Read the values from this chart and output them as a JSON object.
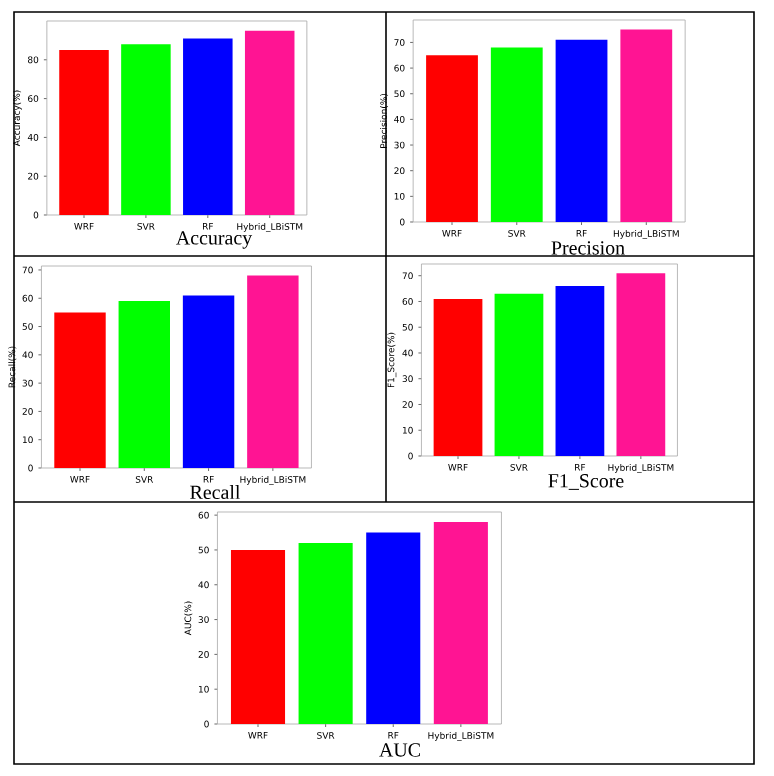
{
  "chart_data": [
    {
      "type": "bar",
      "title": "Accuracy",
      "ylabel": "Accuracy(%)",
      "categories": [
        "WRF",
        "SVR",
        "RF",
        "Hybrid_LBiSTM"
      ],
      "values": [
        85,
        88,
        91,
        95
      ],
      "colors": [
        "#ff0000",
        "#00ff00",
        "#0000ff",
        "#ff1493"
      ],
      "ylim": [
        0,
        100
      ],
      "yticks": [
        0,
        20,
        40,
        60,
        80
      ]
    },
    {
      "type": "bar",
      "title": "Precision",
      "ylabel": "Precision(%)",
      "categories": [
        "WRF",
        "SVR",
        "RF",
        "Hybrid_LBiSTM"
      ],
      "values": [
        65,
        68,
        71,
        75
      ],
      "colors": [
        "#ff0000",
        "#00ff00",
        "#0000ff",
        "#ff1493"
      ],
      "ylim": [
        0,
        78.75
      ],
      "yticks": [
        0,
        10,
        20,
        30,
        40,
        50,
        60,
        70
      ]
    },
    {
      "type": "bar",
      "title": "Recall",
      "ylabel": "Recall(%)",
      "categories": [
        "WRF",
        "SVR",
        "RF",
        "Hybrid_LBiSTM"
      ],
      "values": [
        55,
        59,
        61,
        68
      ],
      "colors": [
        "#ff0000",
        "#00ff00",
        "#0000ff",
        "#ff1493"
      ],
      "ylim": [
        0,
        71.4
      ],
      "yticks": [
        0,
        10,
        20,
        30,
        40,
        50,
        60,
        70
      ]
    },
    {
      "type": "bar",
      "title": "F1_Score",
      "ylabel": "F1_Score(%)",
      "categories": [
        "WRF",
        "SVR",
        "RF",
        "Hybrid_LBiSTM"
      ],
      "values": [
        61,
        63,
        66,
        71
      ],
      "colors": [
        "#ff0000",
        "#00ff00",
        "#0000ff",
        "#ff1493"
      ],
      "ylim": [
        0,
        74.55
      ],
      "yticks": [
        0,
        10,
        20,
        30,
        40,
        50,
        60,
        70
      ]
    },
    {
      "type": "bar",
      "title": "AUC",
      "ylabel": "AUC(%)",
      "categories": [
        "WRF",
        "SVR",
        "RF",
        "Hybrid_LBiSTM"
      ],
      "values": [
        50,
        52,
        55,
        58
      ],
      "colors": [
        "#ff0000",
        "#00ff00",
        "#0000ff",
        "#ff1493"
      ],
      "ylim": [
        0,
        60.9
      ],
      "yticks": [
        0,
        10,
        20,
        30,
        40,
        50,
        60
      ]
    }
  ]
}
